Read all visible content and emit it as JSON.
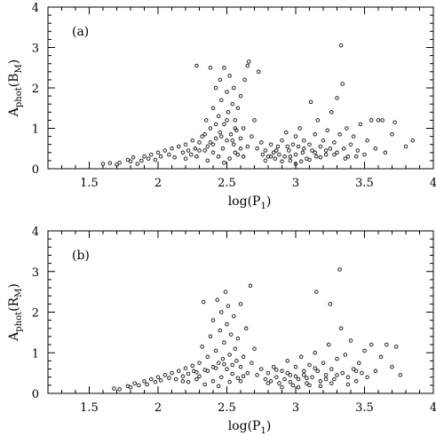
{
  "chart_data": [
    {
      "type": "scatter",
      "panel_label": "(a)",
      "xlabel": {
        "main": "log(P",
        "sub": "1",
        "close": ")"
      },
      "ylabel": {
        "main": "A",
        "sub": "phot",
        "mid": "(B",
        "sub2": "M",
        "close": ")"
      },
      "xlim": [
        1.2,
        4.0
      ],
      "ylim": [
        0,
        4
      ],
      "xticks": [
        1.5,
        2,
        2.5,
        3,
        3.5,
        4
      ],
      "xtick_labels": [
        "1.5",
        "2",
        "2.5",
        "3",
        "3.5",
        "4"
      ],
      "yticks": [
        0,
        1,
        2,
        3,
        4
      ],
      "ytick_labels": [
        "0",
        "1",
        "2",
        "3",
        "4"
      ],
      "marker": "open circle",
      "grid": false,
      "points": [
        [
          1.6,
          0.12
        ],
        [
          1.65,
          0.14
        ],
        [
          1.7,
          0.1
        ],
        [
          1.72,
          0.15
        ],
        [
          1.78,
          0.22
        ],
        [
          1.8,
          0.18
        ],
        [
          1.82,
          0.28
        ],
        [
          1.85,
          0.12
        ],
        [
          1.88,
          0.2
        ],
        [
          1.9,
          0.3
        ],
        [
          1.93,
          0.25
        ],
        [
          1.95,
          0.35
        ],
        [
          1.98,
          0.22
        ],
        [
          2.0,
          0.4
        ],
        [
          2.02,
          0.3
        ],
        [
          2.05,
          0.45
        ],
        [
          2.08,
          0.35
        ],
        [
          2.1,
          0.5
        ],
        [
          2.12,
          0.28
        ],
        [
          2.15,
          0.55
        ],
        [
          2.18,
          0.4
        ],
        [
          2.2,
          0.6
        ],
        [
          2.22,
          0.45
        ],
        [
          2.25,
          0.7
        ],
        [
          2.27,
          0.5
        ],
        [
          2.28,
          2.55
        ],
        [
          2.3,
          0.65
        ],
        [
          2.32,
          0.8
        ],
        [
          2.34,
          0.45
        ],
        [
          2.35,
          1.2
        ],
        [
          2.36,
          0.55
        ],
        [
          2.38,
          1.0
        ],
        [
          2.38,
          2.5
        ],
        [
          2.4,
          0.6
        ],
        [
          2.4,
          1.5
        ],
        [
          2.42,
          0.75
        ],
        [
          2.42,
          2.0
        ],
        [
          2.44,
          1.3
        ],
        [
          2.45,
          0.9
        ],
        [
          2.45,
          2.2
        ],
        [
          2.46,
          1.7
        ],
        [
          2.47,
          0.5
        ],
        [
          2.48,
          1.1
        ],
        [
          2.48,
          2.5
        ],
        [
          2.5,
          0.7
        ],
        [
          2.5,
          1.9
        ],
        [
          2.51,
          1.4
        ],
        [
          2.52,
          2.3
        ],
        [
          2.53,
          0.85
        ],
        [
          2.54,
          1.6
        ],
        [
          2.55,
          0.6
        ],
        [
          2.55,
          2.0
        ],
        [
          2.56,
          1.2
        ],
        [
          2.57,
          0.95
        ],
        [
          2.58,
          1.5
        ],
        [
          2.6,
          0.75
        ],
        [
          2.6,
          1.8
        ],
        [
          2.62,
          1.0
        ],
        [
          2.63,
          2.2
        ],
        [
          2.65,
          0.55
        ],
        [
          2.65,
          2.55
        ],
        [
          2.66,
          2.65
        ],
        [
          2.68,
          0.8
        ],
        [
          2.7,
          1.2
        ],
        [
          2.72,
          0.5
        ],
        [
          2.73,
          2.4
        ],
        [
          2.75,
          0.65
        ],
        [
          2.76,
          0.35
        ],
        [
          2.78,
          0.45
        ],
        [
          2.8,
          0.3
        ],
        [
          2.82,
          0.6
        ],
        [
          2.84,
          0.4
        ],
        [
          2.85,
          0.25
        ],
        [
          2.87,
          0.55
        ],
        [
          2.88,
          0.35
        ],
        [
          2.9,
          0.7
        ],
        [
          2.92,
          0.3
        ],
        [
          2.93,
          0.9
        ],
        [
          2.95,
          0.45
        ],
        [
          2.96,
          0.2
        ],
        [
          2.98,
          0.6
        ],
        [
          3.0,
          0.8
        ],
        [
          3.0,
          0.35
        ],
        [
          3.02,
          0.55
        ],
        [
          3.03,
          1.0
        ],
        [
          3.05,
          0.4
        ],
        [
          3.06,
          0.7
        ],
        [
          3.08,
          0.25
        ],
        [
          3.1,
          0.6
        ],
        [
          3.11,
          1.65
        ],
        [
          3.12,
          0.45
        ],
        [
          3.14,
          0.85
        ],
        [
          3.15,
          0.3
        ],
        [
          3.16,
          1.2
        ],
        [
          3.18,
          0.55
        ],
        [
          3.2,
          0.7
        ],
        [
          3.22,
          0.35
        ],
        [
          3.23,
          0.95
        ],
        [
          3.25,
          0.5
        ],
        [
          3.26,
          1.4
        ],
        [
          3.28,
          0.65
        ],
        [
          3.3,
          0.4
        ],
        [
          3.3,
          1.75
        ],
        [
          3.32,
          0.85
        ],
        [
          3.33,
          3.05
        ],
        [
          3.34,
          2.1
        ],
        [
          3.35,
          0.5
        ],
        [
          3.37,
          1.0
        ],
        [
          3.38,
          0.3
        ],
        [
          3.4,
          0.6
        ],
        [
          3.42,
          0.8
        ],
        [
          3.45,
          0.45
        ],
        [
          3.47,
          1.1
        ],
        [
          3.5,
          0.35
        ],
        [
          3.52,
          0.7
        ],
        [
          3.55,
          1.2
        ],
        [
          3.58,
          0.5
        ],
        [
          3.6,
          1.2
        ],
        [
          3.63,
          1.2
        ],
        [
          3.65,
          0.4
        ],
        [
          3.7,
          0.85
        ],
        [
          3.72,
          1.15
        ],
        [
          3.8,
          0.55
        ],
        [
          3.85,
          0.7
        ],
        [
          2.44,
          0.3
        ],
        [
          2.36,
          0.2
        ],
        [
          2.52,
          0.25
        ],
        [
          2.58,
          0.35
        ],
        [
          2.48,
          0.15
        ],
        [
          2.4,
          0.4
        ],
        [
          2.28,
          0.3
        ],
        [
          2.2,
          0.25
        ],
        [
          2.56,
          0.4
        ],
        [
          2.62,
          0.3
        ],
        [
          3.04,
          0.18
        ],
        [
          2.96,
          0.3
        ],
        [
          3.1,
          0.22
        ],
        [
          3.18,
          0.28
        ],
        [
          2.9,
          0.18
        ],
        [
          3.0,
          0.12
        ],
        [
          2.34,
          0.85
        ],
        [
          2.42,
          1.1
        ],
        [
          2.5,
          1.2
        ],
        [
          2.56,
          1.0
        ],
        [
          2.46,
          0.8
        ],
        [
          2.38,
          0.65
        ],
        [
          2.54,
          0.7
        ],
        [
          2.6,
          0.5
        ],
        [
          2.3,
          0.45
        ],
        [
          2.24,
          0.35
        ],
        [
          3.06,
          0.5
        ],
        [
          3.14,
          0.4
        ],
        [
          2.94,
          0.55
        ],
        [
          2.86,
          0.45
        ],
        [
          3.22,
          0.45
        ],
        [
          3.28,
          0.35
        ],
        [
          2.82,
          0.3
        ],
        [
          3.36,
          0.25
        ],
        [
          3.44,
          0.3
        ],
        [
          2.78,
          0.2
        ]
      ]
    },
    {
      "type": "scatter",
      "panel_label": "(b)",
      "xlabel": {
        "main": "log(P",
        "sub": "1",
        "close": ")"
      },
      "ylabel": {
        "main": "A",
        "sub": "phot",
        "mid": "(R",
        "sub2": "M",
        "close": ")"
      },
      "xlim": [
        1.2,
        4.0
      ],
      "ylim": [
        0,
        4
      ],
      "xticks": [
        1.5,
        2,
        2.5,
        3,
        3.5,
        4
      ],
      "xtick_labels": [
        "1.5",
        "2",
        "2.5",
        "3",
        "3.5",
        "4"
      ],
      "yticks": [
        0,
        1,
        2,
        3,
        4
      ],
      "ytick_labels": [
        "0",
        "1",
        "2",
        "3",
        "4"
      ],
      "marker": "open circle",
      "grid": false,
      "points": [
        [
          1.68,
          0.12
        ],
        [
          1.72,
          0.1
        ],
        [
          1.78,
          0.18
        ],
        [
          1.8,
          0.15
        ],
        [
          1.83,
          0.25
        ],
        [
          1.86,
          0.2
        ],
        [
          1.9,
          0.3
        ],
        [
          1.92,
          0.22
        ],
        [
          1.95,
          0.35
        ],
        [
          1.98,
          0.28
        ],
        [
          2.0,
          0.4
        ],
        [
          2.02,
          0.32
        ],
        [
          2.05,
          0.45
        ],
        [
          2.08,
          0.38
        ],
        [
          2.1,
          0.5
        ],
        [
          2.13,
          0.35
        ],
        [
          2.15,
          0.55
        ],
        [
          2.18,
          0.42
        ],
        [
          2.2,
          0.62
        ],
        [
          2.22,
          0.48
        ],
        [
          2.25,
          0.68
        ],
        [
          2.28,
          0.52
        ],
        [
          2.3,
          0.75
        ],
        [
          2.32,
          1.15
        ],
        [
          2.33,
          2.25
        ],
        [
          2.34,
          0.58
        ],
        [
          2.36,
          0.9
        ],
        [
          2.38,
          1.4
        ],
        [
          2.4,
          0.65
        ],
        [
          2.4,
          1.8
        ],
        [
          2.42,
          1.05
        ],
        [
          2.43,
          2.3
        ],
        [
          2.44,
          0.75
        ],
        [
          2.45,
          1.55
        ],
        [
          2.46,
          2.0
        ],
        [
          2.47,
          0.85
        ],
        [
          2.48,
          1.25
        ],
        [
          2.49,
          2.5
        ],
        [
          2.5,
          0.6
        ],
        [
          2.5,
          1.7
        ],
        [
          2.51,
          2.15
        ],
        [
          2.52,
          0.95
        ],
        [
          2.53,
          1.45
        ],
        [
          2.54,
          0.7
        ],
        [
          2.55,
          1.9
        ],
        [
          2.56,
          1.1
        ],
        [
          2.57,
          0.8
        ],
        [
          2.58,
          1.35
        ],
        [
          2.6,
          0.65
        ],
        [
          2.6,
          2.2
        ],
        [
          2.62,
          0.9
        ],
        [
          2.64,
          1.6
        ],
        [
          2.65,
          0.5
        ],
        [
          2.67,
          2.65
        ],
        [
          2.68,
          0.75
        ],
        [
          2.7,
          1.1
        ],
        [
          2.72,
          0.45
        ],
        [
          2.75,
          0.6
        ],
        [
          2.78,
          0.35
        ],
        [
          2.8,
          0.5
        ],
        [
          2.82,
          0.3
        ],
        [
          2.84,
          0.65
        ],
        [
          2.86,
          0.4
        ],
        [
          2.88,
          0.25
        ],
        [
          2.9,
          0.55
        ],
        [
          2.92,
          0.35
        ],
        [
          2.94,
          0.8
        ],
        [
          2.96,
          0.45
        ],
        [
          2.98,
          0.2
        ],
        [
          3.0,
          0.65
        ],
        [
          3.02,
          0.35
        ],
        [
          3.04,
          0.9
        ],
        [
          3.06,
          0.45
        ],
        [
          3.08,
          0.25
        ],
        [
          3.1,
          0.7
        ],
        [
          3.12,
          0.4
        ],
        [
          3.14,
          1.0
        ],
        [
          3.15,
          2.5
        ],
        [
          3.16,
          0.55
        ],
        [
          3.18,
          0.3
        ],
        [
          3.2,
          0.75
        ],
        [
          3.22,
          0.45
        ],
        [
          3.24,
          1.2
        ],
        [
          3.25,
          2.2
        ],
        [
          3.26,
          0.6
        ],
        [
          3.28,
          0.35
        ],
        [
          3.3,
          0.85
        ],
        [
          3.32,
          3.05
        ],
        [
          3.33,
          1.6
        ],
        [
          3.34,
          0.5
        ],
        [
          3.36,
          0.95
        ],
        [
          3.38,
          0.4
        ],
        [
          3.4,
          1.3
        ],
        [
          3.42,
          0.6
        ],
        [
          3.44,
          0.3
        ],
        [
          3.46,
          0.75
        ],
        [
          3.48,
          0.5
        ],
        [
          3.5,
          1.05
        ],
        [
          3.52,
          0.4
        ],
        [
          3.55,
          1.2
        ],
        [
          3.58,
          0.55
        ],
        [
          3.62,
          0.9
        ],
        [
          3.66,
          1.2
        ],
        [
          3.7,
          0.65
        ],
        [
          3.73,
          1.15
        ],
        [
          3.76,
          0.45
        ],
        [
          2.4,
          0.3
        ],
        [
          2.34,
          0.22
        ],
        [
          2.46,
          0.4
        ],
        [
          2.52,
          0.28
        ],
        [
          2.58,
          0.38
        ],
        [
          2.44,
          0.18
        ],
        [
          2.28,
          0.35
        ],
        [
          2.22,
          0.28
        ],
        [
          2.62,
          0.42
        ],
        [
          3.02,
          0.15
        ],
        [
          2.96,
          0.28
        ],
        [
          3.1,
          0.2
        ],
        [
          3.18,
          0.18
        ],
        [
          2.9,
          0.15
        ],
        [
          3.26,
          0.25
        ],
        [
          3.06,
          0.55
        ],
        [
          3.14,
          0.62
        ],
        [
          2.94,
          0.5
        ],
        [
          2.86,
          0.58
        ],
        [
          3.22,
          0.35
        ],
        [
          3.3,
          0.45
        ],
        [
          2.8,
          0.25
        ],
        [
          3.38,
          0.22
        ],
        [
          3.44,
          0.55
        ],
        [
          2.36,
          0.55
        ],
        [
          2.42,
          0.62
        ],
        [
          2.48,
          0.72
        ],
        [
          2.54,
          0.48
        ],
        [
          2.3,
          0.42
        ],
        [
          2.26,
          0.55
        ],
        [
          2.18,
          0.3
        ],
        [
          2.6,
          0.3
        ],
        [
          3.0,
          0.42
        ],
        [
          3.08,
          0.38
        ]
      ]
    }
  ]
}
